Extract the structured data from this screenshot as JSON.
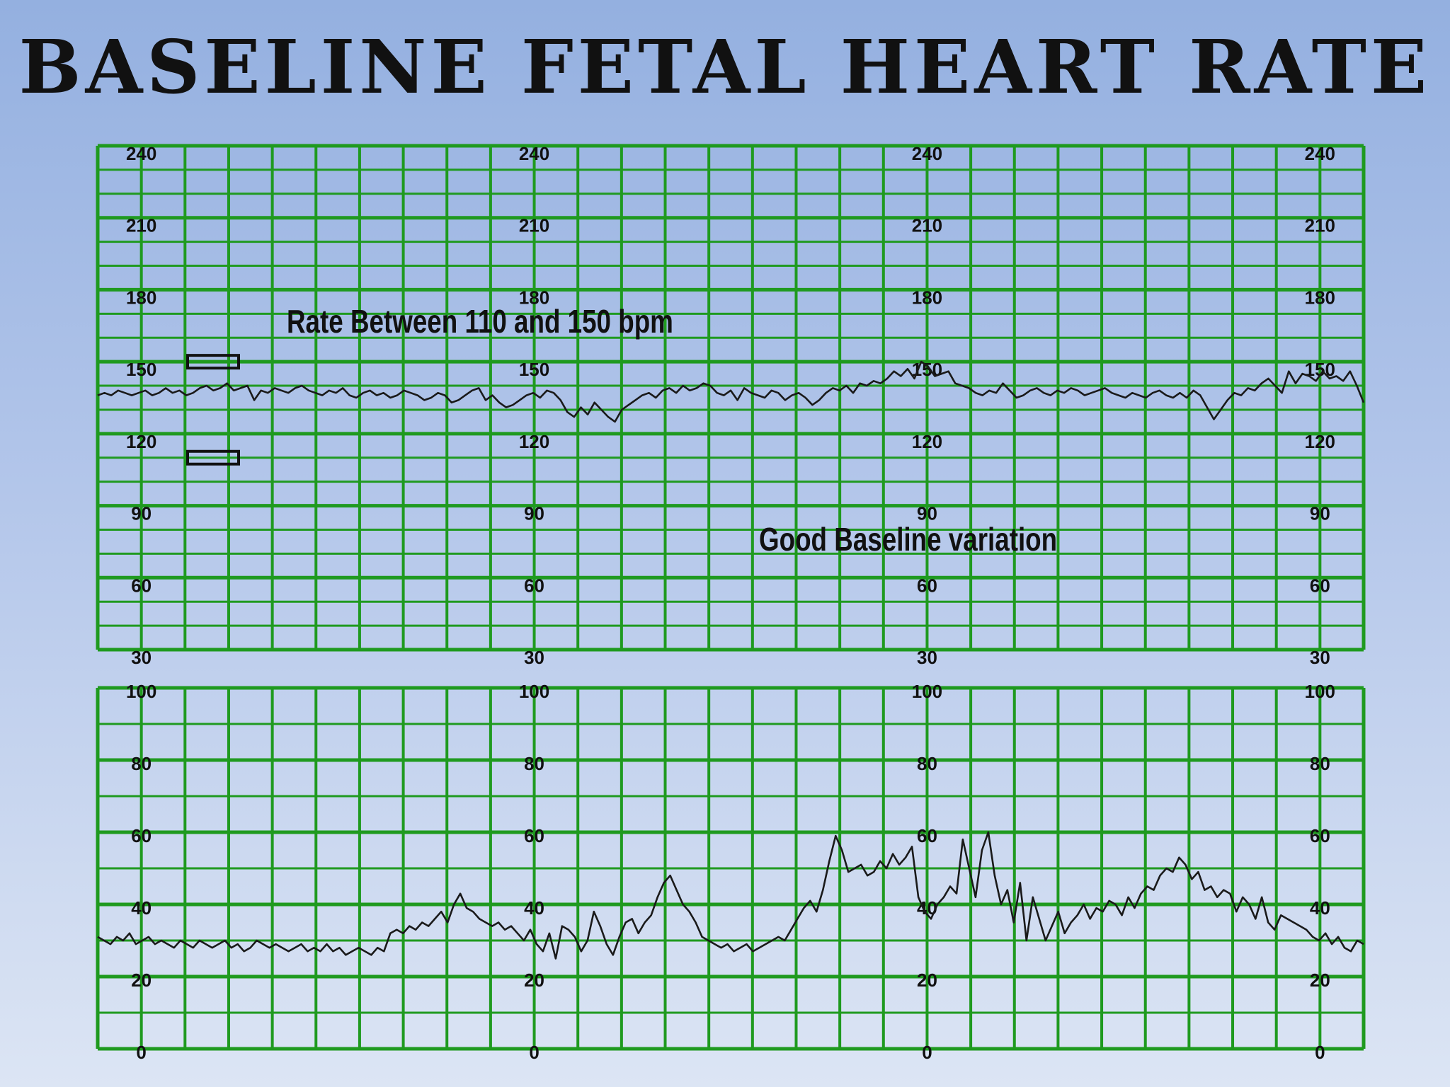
{
  "title": "Baseline Fetal Heart Rate",
  "chart_data": [
    {
      "type": "line",
      "panel": "fetal-heart-rate",
      "ylim": [
        30,
        240
      ],
      "tick_labels": [
        "240",
        "210",
        "180",
        "150",
        "120",
        "90",
        "60",
        "30"
      ],
      "tick_values": [
        240,
        210,
        180,
        150,
        120,
        90,
        60,
        30
      ],
      "grid": true,
      "annotations": [
        "Rate Between 110 and 150 bpm",
        "Good Baseline variation"
      ],
      "reference_markers": [
        150,
        110
      ],
      "series": [
        {
          "values": [
            136,
            137,
            136,
            138,
            137,
            136,
            137,
            138,
            136,
            137,
            139,
            137,
            138,
            136,
            137,
            139,
            140,
            138,
            139,
            141,
            138,
            139,
            140,
            134,
            138,
            137,
            139,
            138,
            137,
            139,
            140,
            138,
            137,
            136,
            138,
            137,
            139,
            136,
            135,
            137,
            138,
            136,
            137,
            135,
            136,
            138,
            137,
            136,
            134,
            135,
            137,
            136,
            133,
            134,
            136,
            138,
            139,
            134,
            136,
            133,
            131,
            132,
            134,
            136,
            137,
            135,
            138,
            137,
            134,
            129,
            127,
            131,
            128,
            133,
            130,
            127,
            125,
            130,
            132,
            134,
            136,
            137,
            135,
            138,
            139,
            137,
            140,
            138,
            139,
            141,
            140,
            137,
            136,
            138,
            134,
            139,
            137,
            136,
            135,
            138,
            137,
            134,
            136,
            137,
            135,
            132,
            134,
            137,
            139,
            138,
            140,
            137,
            141,
            140,
            142,
            141,
            143,
            146,
            144,
            147,
            143,
            150,
            148,
            144,
            145,
            146,
            141,
            140,
            139,
            137,
            136,
            138,
            137,
            141,
            138,
            135,
            136,
            138,
            139,
            137,
            136,
            138,
            137,
            139,
            138,
            136,
            137,
            138,
            139,
            137,
            136,
            135,
            137,
            136,
            135,
            137,
            138,
            136,
            135,
            137,
            135,
            138,
            136,
            131,
            126,
            130,
            134,
            137,
            136,
            139,
            138,
            141,
            143,
            140,
            137,
            146,
            141,
            145,
            144,
            142,
            146,
            143,
            144,
            142,
            146,
            140,
            133
          ]
        }
      ]
    },
    {
      "type": "line",
      "panel": "uterine-activity",
      "ylim": [
        0,
        100
      ],
      "tick_labels": [
        "100",
        "80",
        "60",
        "40",
        "20",
        "0"
      ],
      "tick_values": [
        100,
        80,
        60,
        40,
        20,
        0
      ],
      "grid": true,
      "series": [
        {
          "values": [
            31,
            30,
            29,
            31,
            30,
            32,
            29,
            30,
            31,
            29,
            30,
            29,
            28,
            30,
            29,
            28,
            30,
            29,
            28,
            29,
            30,
            28,
            29,
            27,
            28,
            30,
            29,
            28,
            29,
            28,
            27,
            28,
            29,
            27,
            28,
            27,
            29,
            27,
            28,
            26,
            27,
            28,
            27,
            26,
            28,
            27,
            32,
            33,
            32,
            34,
            33,
            35,
            34,
            36,
            38,
            35,
            40,
            43,
            39,
            38,
            36,
            35,
            34,
            35,
            33,
            34,
            32,
            30,
            33,
            29,
            27,
            32,
            25,
            34,
            33,
            31,
            27,
            30,
            38,
            34,
            29,
            26,
            31,
            35,
            36,
            32,
            35,
            37,
            42,
            46,
            48,
            44,
            40,
            38,
            35,
            31,
            30,
            29,
            28,
            29,
            27,
            28,
            29,
            27,
            28,
            29,
            30,
            31,
            30,
            33,
            36,
            39,
            41,
            38,
            44,
            52,
            59,
            55,
            49,
            50,
            51,
            48,
            49,
            52,
            50,
            54,
            51,
            53,
            56,
            42,
            38,
            36,
            40,
            42,
            45,
            43,
            58,
            50,
            42,
            55,
            60,
            48,
            40,
            44,
            35,
            46,
            30,
            42,
            36,
            30,
            34,
            38,
            32,
            35,
            37,
            40,
            36,
            39,
            38,
            41,
            40,
            37,
            42,
            39,
            43,
            45,
            44,
            48,
            50,
            49,
            53,
            51,
            47,
            49,
            44,
            45,
            42,
            44,
            43,
            38,
            42,
            40,
            36,
            42,
            35,
            33,
            37,
            36,
            35,
            34,
            33,
            31,
            30,
            32,
            29,
            31,
            28,
            27,
            30,
            29
          ]
        }
      ]
    }
  ]
}
